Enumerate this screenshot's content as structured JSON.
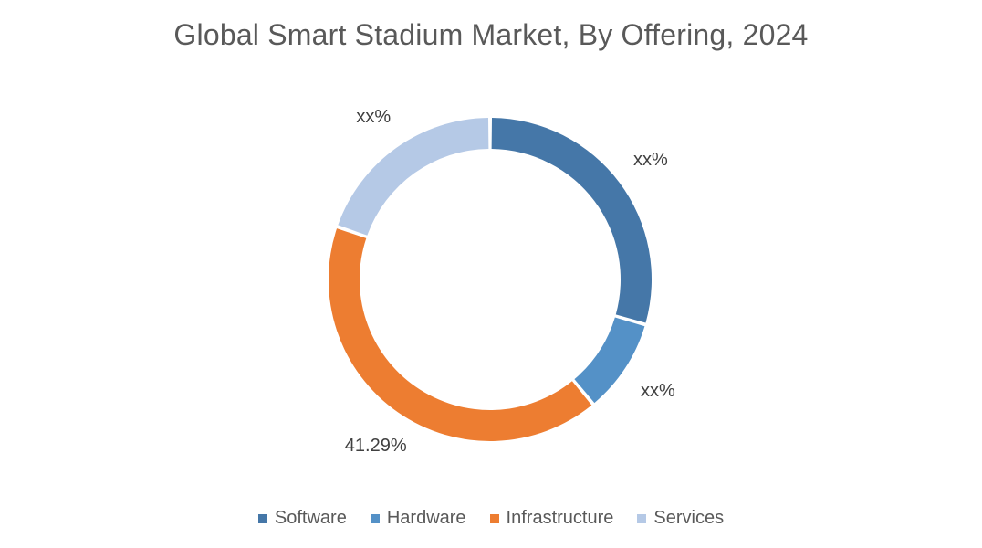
{
  "chart_data": {
    "type": "pie",
    "title": "Global Smart Stadium Market, By Offering, 2024",
    "categories": [
      "Software",
      "Hardware",
      "Infrastructure",
      "Services"
    ],
    "values": [
      29.5,
      9.5,
      41.29,
      19.71
    ],
    "data_labels": [
      "xx%",
      "xx%",
      "41.29%",
      "xx%"
    ],
    "colors": [
      "#4577a8",
      "#5491c7",
      "#ed7d31",
      "#b5c9e6"
    ],
    "legend": {
      "position": "bottom",
      "entries": [
        "Software",
        "Hardware",
        "Infrastructure",
        "Services"
      ]
    },
    "donut": true
  }
}
